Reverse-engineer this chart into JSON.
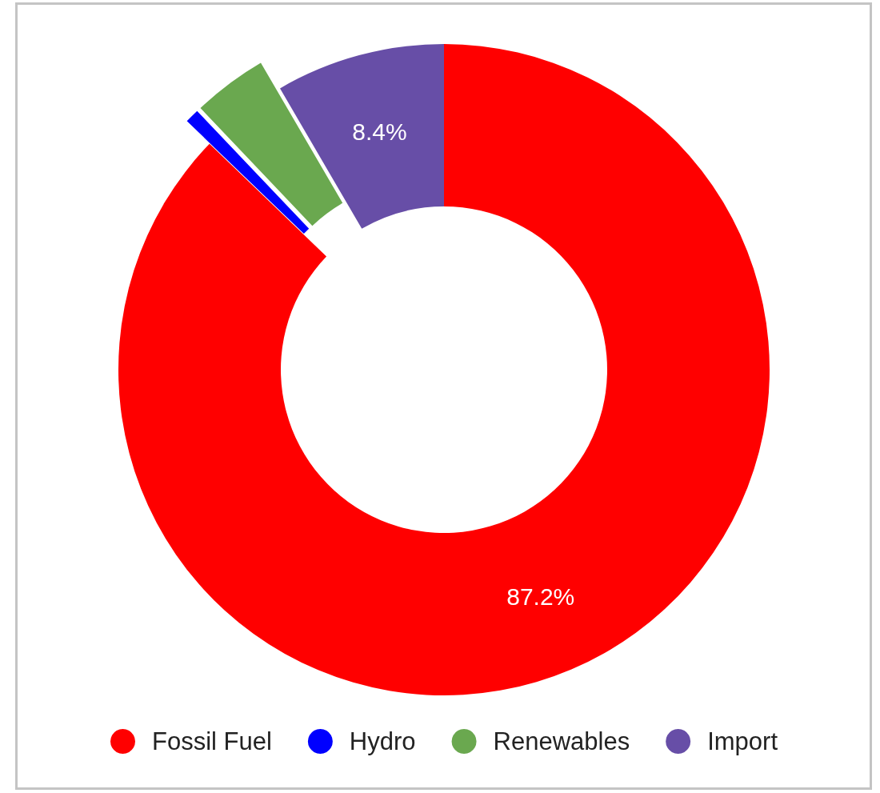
{
  "chart_data": {
    "type": "donut",
    "categories": [
      "Fossil Fuel",
      "Hydro",
      "Renewables",
      "Import"
    ],
    "values": [
      87.2,
      0.7,
      3.7,
      8.4
    ],
    "colors": [
      "#ff0000",
      "#0000ff",
      "#6aa84f",
      "#674ea7"
    ],
    "value_labels": [
      "87.2%",
      null,
      null,
      "8.4%"
    ],
    "legend": "bottom"
  }
}
